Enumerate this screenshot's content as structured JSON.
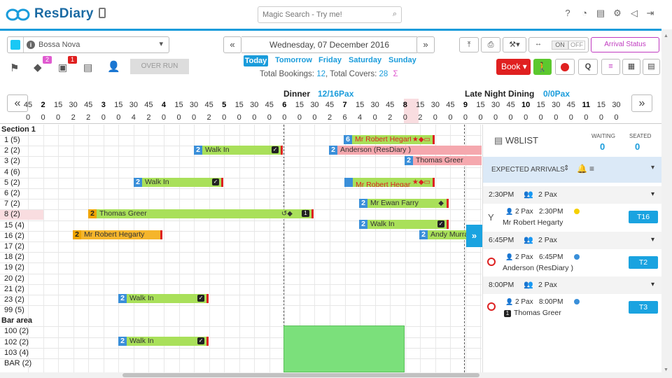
{
  "app": {
    "brand": "ResDiary",
    "search_placeholder": "Magic Search - Try me!"
  },
  "restaurant": {
    "name": "Bossa Nova"
  },
  "toolbar": {
    "over_run_label": "OVER RUN",
    "tags_badge": "2",
    "docs_badge": "1"
  },
  "date": {
    "label": "Wednesday, 07 December 2016",
    "days": [
      "Today",
      "Tomorrow",
      "Friday",
      "Saturday",
      "Sunday"
    ],
    "total_bookings_label": "Total Bookings:",
    "total_bookings": "12",
    "total_covers_label": ", Total Covers:",
    "total_covers": "28",
    "sigma": "Σ"
  },
  "right_tools": {
    "toggle_on": "ON",
    "toggle_off": "OFF",
    "arrival_status": "Arrival Status",
    "book": "Book",
    "q": "Q",
    "book_color": "#e02020",
    "walk_color": "#5cc82e"
  },
  "sessions": {
    "dinner_label": "Dinner",
    "dinner_pax": "12/16Pax",
    "late_label": "Late Night Dining",
    "late_pax": "0/0Pax"
  },
  "timeline": {
    "ticks": [
      "45",
      "2",
      "15",
      "30",
      "45",
      "3",
      "15",
      "30",
      "45",
      "4",
      "15",
      "30",
      "45",
      "5",
      "15",
      "30",
      "45",
      "6",
      "15",
      "30",
      "45",
      "7",
      "15",
      "30",
      "45",
      "8",
      "15",
      "30",
      "45",
      "9",
      "15",
      "30",
      "45",
      "10",
      "15",
      "30",
      "45",
      "11",
      "15",
      "30"
    ],
    "covers": [
      "0",
      "0",
      "0",
      "2",
      "2",
      "0",
      "0",
      "4",
      "2",
      "0",
      "0",
      "0",
      "2",
      "0",
      "0",
      "0",
      "0",
      "0",
      "0",
      "0",
      "2",
      "6",
      "4",
      "0",
      "2",
      "0",
      "2",
      "0",
      "0",
      "0",
      "0",
      "0",
      "0",
      "0",
      "0",
      "0",
      "0",
      "0",
      "0",
      "0"
    ]
  },
  "sections": [
    {
      "name": "Section 1",
      "tables": [
        "1 (5)",
        "2 (2)",
        "3 (2)",
        "4 (6)",
        "5 (2)",
        "6 (2)",
        "7 (2)",
        "8 (2)",
        "15 (4)",
        "16 (2)",
        "17 (2)",
        "18 (2)",
        "19 (2)",
        "20 (2)",
        "21 (2)",
        "23 (2)",
        "99 (5)"
      ]
    },
    {
      "name": "Bar area",
      "tables": [
        "100 (2)",
        "102 (2)",
        "103 (4)",
        "BAR (2)"
      ]
    }
  ],
  "bookings": [
    {
      "pax": "6",
      "name": "Mr Robert Hegarty",
      "color": "#a9e05a",
      "text_color": "#d22"
    },
    {
      "pax": "2",
      "name": "Walk In",
      "color": "#a9e05a"
    },
    {
      "pax": "2",
      "name": "Anderson (ResDiary )",
      "color": "#f5a8ae"
    },
    {
      "pax": "2",
      "name": "Thomas Greer",
      "color": "#f5a8ae"
    },
    {
      "pax": "2",
      "name": "Walk In",
      "color": "#a9e05a"
    },
    {
      "pax": "",
      "name": "Mr Robert Hegarty",
      "color": "#a9e05a",
      "text_color": "#d22"
    },
    {
      "pax": "2",
      "name": "Mr Ewan Farry",
      "color": "#a9e05a"
    },
    {
      "pax": "2",
      "name": "Thomas Greer",
      "color": "#a9e05a",
      "extra": "1"
    },
    {
      "pax": "2",
      "name": "Walk In",
      "color": "#a9e05a"
    },
    {
      "pax": "2",
      "name": "Mr Robert Hegarty",
      "color": "#f5b52b"
    },
    {
      "pax": "2",
      "name": "Andy Murray",
      "color": "#a9e05a"
    },
    {
      "pax": "2",
      "name": "Walk In",
      "color": "#a9e05a"
    },
    {
      "pax": "2",
      "name": "Walk In",
      "color": "#a9e05a"
    }
  ],
  "waitlist": {
    "title": "W8LIST",
    "waiting_label": "WAITING",
    "waiting": "0",
    "seated_label": "SEATED",
    "seated": "0",
    "expected_label": "EXPECTED ARRIVALS",
    "groups": [
      {
        "time": "2:30PM",
        "pax": "2 Pax",
        "entry": {
          "pax": "2 Pax",
          "time": "2:30PM",
          "name": "Mr Robert Hegarty",
          "table": "T16",
          "dot": "#f5d000"
        }
      },
      {
        "time": "6:45PM",
        "pax": "2 Pax",
        "entry": {
          "pax": "2 Pax",
          "time": "6:45PM",
          "name": "Anderson (ResDiary )",
          "table": "T2",
          "dot": "#3a8fd9"
        }
      },
      {
        "time": "8:00PM",
        "pax": "2 Pax",
        "entry": {
          "pax": "2 Pax",
          "time": "8:00PM",
          "name": "Thomas Greer",
          "table": "T3",
          "dot": "#3a8fd9",
          "badge": "1"
        }
      }
    ]
  }
}
